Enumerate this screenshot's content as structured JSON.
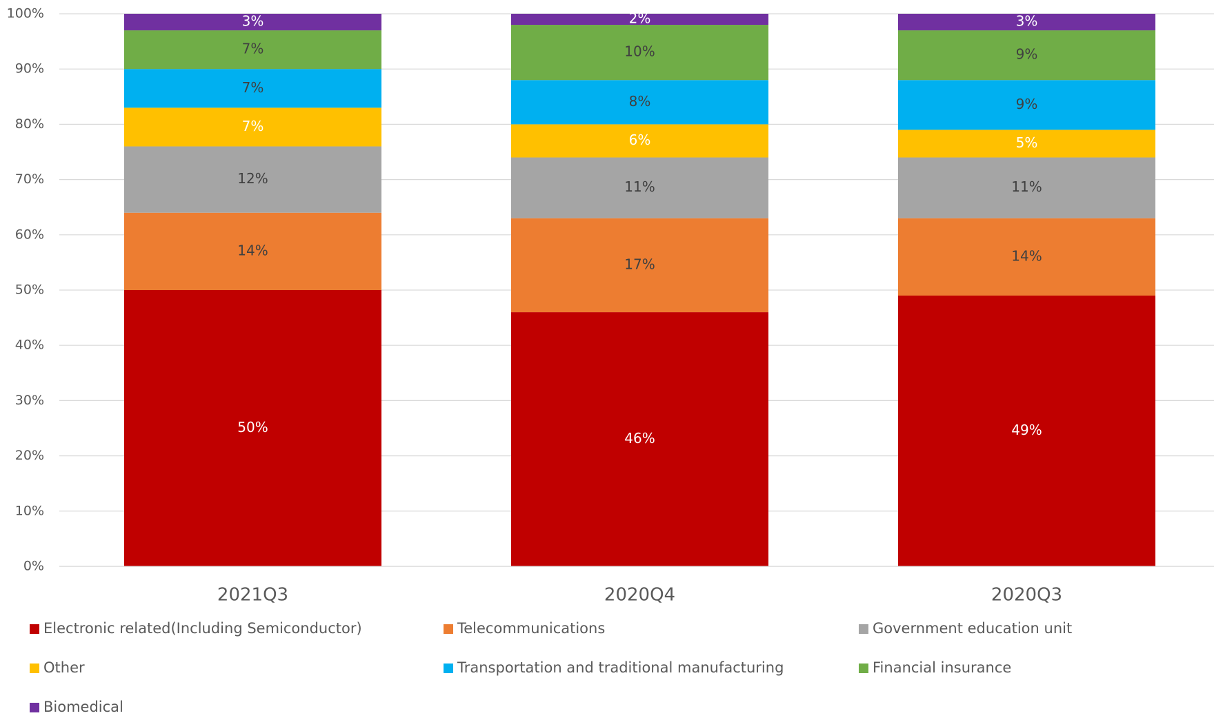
{
  "chart_data": {
    "type": "stacked_bar",
    "categories": [
      "2021Q3",
      "2020Q4",
      "2020Q3"
    ],
    "series": [
      {
        "name": "Electronic related(Including Semiconductor)",
        "color": "#c00000",
        "label_color": "#ffffff",
        "values": [
          50,
          46,
          49
        ],
        "value_labels": [
          "50%",
          "46%",
          "49%"
        ]
      },
      {
        "name": "Telecommunications",
        "color": "#ed7d31",
        "label_color": "#404040",
        "values": [
          14,
          17,
          14
        ],
        "value_labels": [
          "14%",
          "17%",
          "14%"
        ]
      },
      {
        "name": "Government education unit",
        "color": "#a5a5a5",
        "label_color": "#404040",
        "values": [
          12,
          11,
          11
        ],
        "value_labels": [
          "12%",
          "11%",
          "11%"
        ]
      },
      {
        "name": "Other",
        "color": "#ffc000",
        "label_color": "#ffffff",
        "values": [
          7,
          6,
          5
        ],
        "value_labels": [
          "7%",
          "6%",
          "5%"
        ]
      },
      {
        "name": "Transportation and traditional manufacturing",
        "color": "#00b0f0",
        "label_color": "#404040",
        "values": [
          7,
          8,
          9
        ],
        "value_labels": [
          "7%",
          "8%",
          "9%"
        ]
      },
      {
        "name": "Financial insurance",
        "color": "#70ad47",
        "label_color": "#404040",
        "values": [
          7,
          10,
          9
        ],
        "value_labels": [
          "7%",
          "10%",
          "9%"
        ]
      },
      {
        "name": "Biomedical",
        "color": "#7030a0",
        "label_color": "#ffffff",
        "values": [
          3,
          2,
          3
        ],
        "value_labels": [
          "3%",
          "2%",
          "3%"
        ]
      }
    ],
    "ylim": [
      0,
      100
    ],
    "yticks": [
      {
        "value": 0,
        "label": "0%"
      },
      {
        "value": 10,
        "label": "10%"
      },
      {
        "value": 20,
        "label": "20%"
      },
      {
        "value": 30,
        "label": "30%"
      },
      {
        "value": 40,
        "label": "40%"
      },
      {
        "value": 50,
        "label": "50%"
      },
      {
        "value": 60,
        "label": "60%"
      },
      {
        "value": 70,
        "label": "70%"
      },
      {
        "value": 80,
        "label": "80%"
      },
      {
        "value": 90,
        "label": "90%"
      },
      {
        "value": 100,
        "label": "100%"
      }
    ],
    "grid": true,
    "legend": "bottom"
  }
}
